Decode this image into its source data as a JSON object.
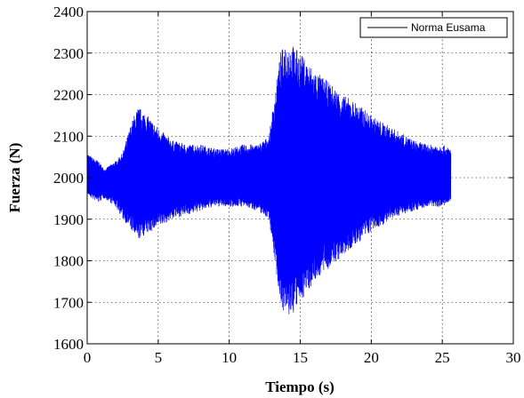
{
  "chart_data": {
    "type": "line",
    "title": "",
    "xlabel": "Tiempo (s)",
    "ylabel": "Fuerza (N)",
    "xlim": [
      0,
      30
    ],
    "ylim": [
      1600,
      2400
    ],
    "x_ticks": [
      0,
      5,
      10,
      15,
      20,
      25,
      30
    ],
    "y_ticks": [
      1600,
      1700,
      1800,
      1900,
      2000,
      2100,
      2200,
      2300,
      2400
    ],
    "grid": true,
    "legend_position": "top-right",
    "series": [
      {
        "name": "Norma Eusama",
        "color": "#0000ff",
        "legend_color": "#000000",
        "x_range": [
          0,
          25.6
        ],
        "center": 2000,
        "envelope": {
          "t": [
            0,
            0.3,
            0.8,
            1.2,
            2.0,
            2.5,
            3.0,
            3.3,
            3.6,
            4.0,
            4.5,
            5.0,
            6.0,
            7.0,
            8.0,
            9.0,
            10.0,
            11.0,
            12.0,
            12.8,
            13.2,
            13.6,
            14.0,
            14.5,
            15.0,
            16.0,
            17.0,
            18.0,
            19.0,
            20.0,
            21.0,
            22.0,
            23.0,
            24.0,
            25.0,
            25.6
          ],
          "upper": [
            2060,
            2050,
            2040,
            2020,
            2040,
            2060,
            2120,
            2150,
            2170,
            2160,
            2140,
            2120,
            2090,
            2080,
            2080,
            2070,
            2070,
            2080,
            2080,
            2100,
            2200,
            2300,
            2330,
            2320,
            2300,
            2260,
            2230,
            2200,
            2180,
            2150,
            2130,
            2110,
            2090,
            2080,
            2080,
            2070
          ],
          "lower": [
            1960,
            1950,
            1940,
            1950,
            1930,
            1900,
            1880,
            1860,
            1850,
            1860,
            1870,
            1880,
            1900,
            1910,
            1920,
            1930,
            1930,
            1930,
            1920,
            1900,
            1800,
            1700,
            1660,
            1670,
            1700,
            1750,
            1780,
            1810,
            1840,
            1870,
            1890,
            1910,
            1920,
            1930,
            1930,
            1940
          ]
        }
      }
    ]
  }
}
